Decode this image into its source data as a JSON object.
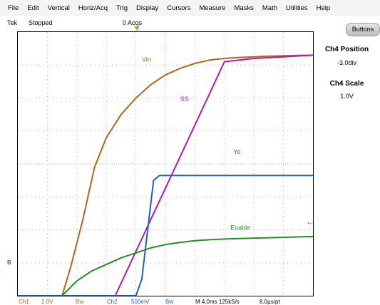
{
  "menu": [
    "File",
    "Edit",
    "Vertical",
    "Horiz/Acq",
    "Trig",
    "Display",
    "Cursors",
    "Measure",
    "Masks",
    "Math",
    "Utilities",
    "Help"
  ],
  "status": {
    "brand": "Tek",
    "state": "Stopped",
    "acqs": "0 Acqs"
  },
  "buttons_label": "Buttons",
  "side_panel": {
    "position_title": "Ch4 Position",
    "position_value": "-3.0div",
    "scale_title": "Ch4 Scale",
    "scale_value": "1.0V"
  },
  "bottom": {
    "ch1": "Ch1",
    "ch1_scale": "2.0V",
    "ch1_bw": "Bw",
    "ch2": "Ch2",
    "ch2_scale": "500mV",
    "ch2_bw": "Bw",
    "timebase": "M 4.0ms 125kS/s",
    "resolution": "8.0µs/pt"
  },
  "marker_left": "B",
  "colors": {
    "vin": "#b5651d",
    "ss": "#b21bb2",
    "vo": "#1f5fbf",
    "enable": "#229122"
  },
  "chart_data": {
    "type": "line",
    "xlim": [
      0,
      10
    ],
    "ylim": [
      0,
      8
    ],
    "series": [
      {
        "name": "Vin",
        "color": "#b5651d",
        "x": [
          1.5,
          1.8,
          2.2,
          2.6,
          3.0,
          3.5,
          4.0,
          4.5,
          5.0,
          5.5,
          6.0,
          6.5,
          7.0,
          7.5,
          8.0,
          8.5,
          9.0,
          9.5,
          10.0
        ],
        "y": [
          0.0,
          0.9,
          2.3,
          3.9,
          4.8,
          5.5,
          6.0,
          6.4,
          6.7,
          6.9,
          7.05,
          7.15,
          7.2,
          7.23,
          7.25,
          7.27,
          7.28,
          7.29,
          7.3
        ]
      },
      {
        "name": "SS",
        "color": "#b21bb2",
        "x": [
          3.3,
          7.0,
          7.5,
          8.0,
          9.0,
          10.0
        ],
        "y": [
          0.0,
          7.1,
          7.15,
          7.2,
          7.25,
          7.3
        ]
      },
      {
        "name": "Yo",
        "color": "#1f5fbf",
        "x": [
          0.0,
          4.0,
          4.2,
          4.6,
          4.8,
          5.0,
          6.0,
          8.0,
          10.0
        ],
        "y": [
          0.0,
          0.0,
          0.5,
          3.5,
          3.65,
          3.65,
          3.65,
          3.65,
          3.65
        ]
      },
      {
        "name": "Enable",
        "color": "#229122",
        "x": [
          1.5,
          2.0,
          2.5,
          3.0,
          3.5,
          4.0,
          4.5,
          5.0,
          5.5,
          6.0,
          6.5,
          7.0,
          8.0,
          9.0,
          10.0
        ],
        "y": [
          0.0,
          0.45,
          0.75,
          0.95,
          1.15,
          1.3,
          1.45,
          1.55,
          1.62,
          1.67,
          1.7,
          1.72,
          1.75,
          1.77,
          1.8
        ]
      }
    ],
    "baseline": {
      "color": "#229122",
      "x": [
        0,
        1.5
      ],
      "y": [
        0,
        0
      ]
    },
    "labels": [
      {
        "text": "Vin",
        "x": 4.2,
        "y": 7.1,
        "color": "#b5651d"
      },
      {
        "text": "SS",
        "x": 5.5,
        "y": 5.9,
        "color": "#b21bb2"
      },
      {
        "text": "Yo",
        "x": 7.3,
        "y": 4.3,
        "color": "#1f5fbf"
      },
      {
        "text": "Enable",
        "x": 7.2,
        "y": 2.0,
        "color": "#229122"
      }
    ],
    "grid": true
  }
}
